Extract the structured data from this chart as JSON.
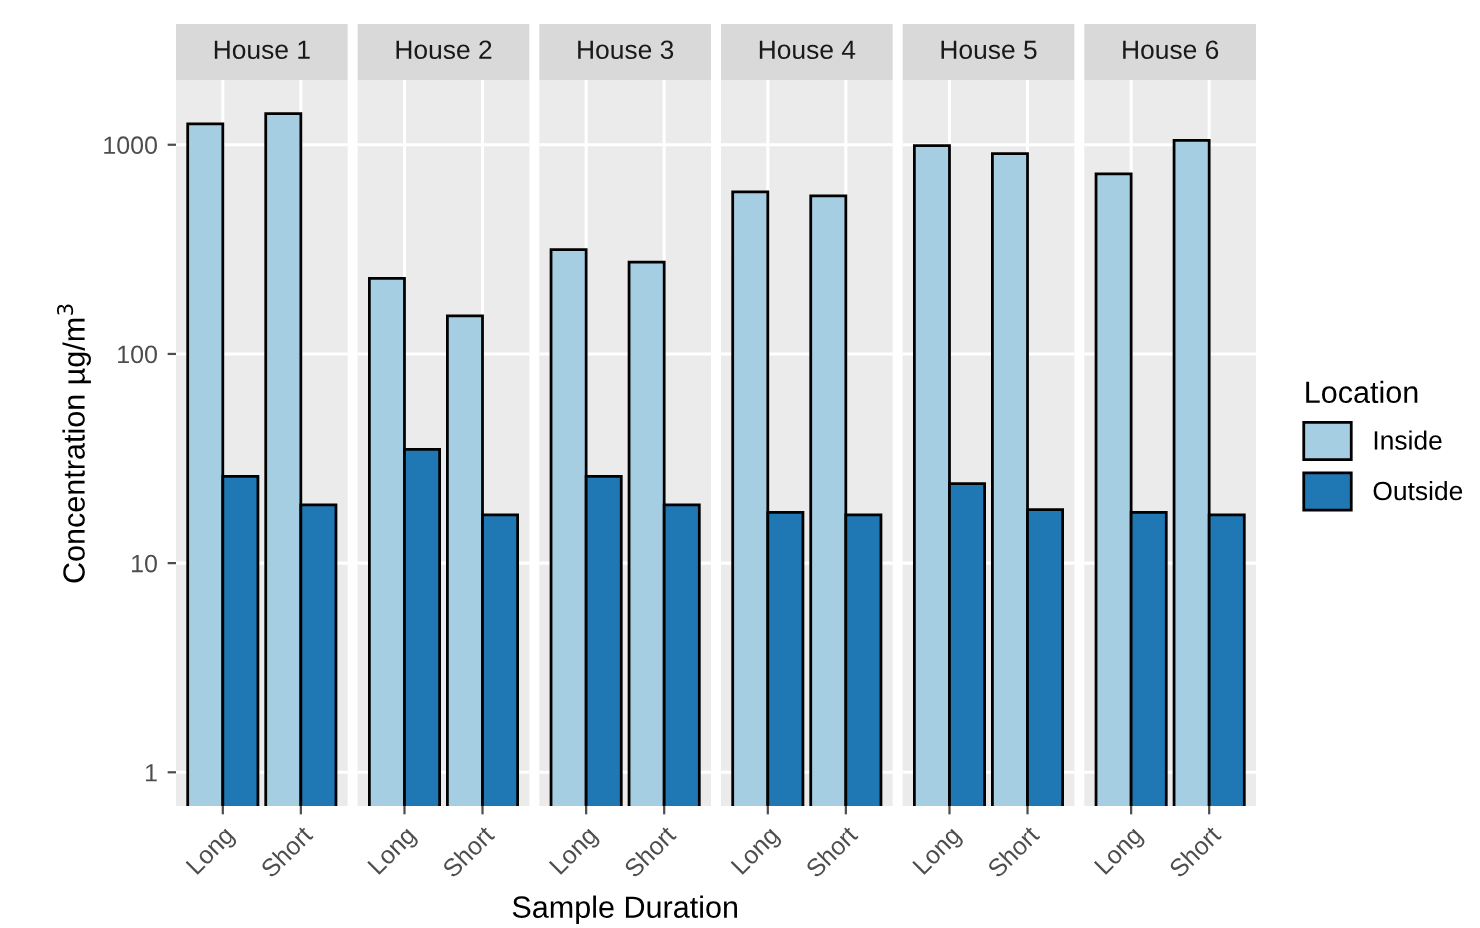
{
  "chart_data": [
    {
      "type": "bar",
      "title": "House 1",
      "ylabel": "Concentration µg/m$^{3}$",
      "legend_title": "Location",
      "legend": "right",
      "categories": [
        "Long",
        "Short"
      ],
      "log": true,
      "ylim": [
        0.69,
        2040
      ],
      "yticks": [
        1,
        10,
        100,
        1000
      ],
      "grid": true,
      "series": [
        {
          "name": "Inside",
          "color": "#a6cee3",
          "values": [
            1260,
            1410
          ]
        },
        {
          "name": "Outside",
          "color": "#1f78b4",
          "values": [
            26,
            19
          ]
        }
      ]
    },
    {
      "type": "bar",
      "title": "House 2",
      "categories": [
        "Long",
        "Short"
      ],
      "log": true,
      "ylim": [
        0.69,
        2040
      ],
      "yticks": [
        1,
        10,
        100,
        1000
      ],
      "grid": true,
      "tick_labels": "x",
      "series": [
        {
          "color": "#a6cee3",
          "values": [
            230,
            152
          ]
        },
        {
          "color": "#1f78b4",
          "values": [
            35,
            17
          ]
        }
      ]
    },
    {
      "type": "bar",
      "title": "House 3",
      "xlabel": "Sample Duration",
      "categories": [
        "Long",
        "Short"
      ],
      "log": true,
      "ylim": [
        0.69,
        2040
      ],
      "yticks": [
        1,
        10,
        100,
        1000
      ],
      "grid": true,
      "tick_labels": "x",
      "series": [
        {
          "color": "#a6cee3",
          "values": [
            315,
            275
          ]
        },
        {
          "color": "#1f78b4",
          "values": [
            26,
            19
          ]
        }
      ]
    },
    {
      "type": "bar",
      "title": "House 4",
      "categories": [
        "Long",
        "Short"
      ],
      "log": true,
      "ylim": [
        0.69,
        2040
      ],
      "yticks": [
        1,
        10,
        100,
        1000
      ],
      "grid": true,
      "tick_labels": "x",
      "series": [
        {
          "color": "#a6cee3",
          "values": [
            596,
            570
          ]
        },
        {
          "color": "#1f78b4",
          "values": [
            17.5,
            17
          ]
        }
      ]
    },
    {
      "type": "bar",
      "title": "House 5",
      "categories": [
        "Long",
        "Short"
      ],
      "log": true,
      "ylim": [
        0.69,
        2040
      ],
      "yticks": [
        1,
        10,
        100,
        1000
      ],
      "grid": true,
      "tick_labels": "x",
      "series": [
        {
          "color": "#a6cee3",
          "values": [
            990,
            906
          ]
        },
        {
          "color": "#1f78b4",
          "values": [
            24,
            18
          ]
        }
      ]
    },
    {
      "type": "bar",
      "title": "House 6",
      "categories": [
        "Long",
        "Short"
      ],
      "log": true,
      "ylim": [
        0.69,
        2040
      ],
      "yticks": [
        1,
        10,
        100,
        1000
      ],
      "grid": true,
      "tick_labels": "x",
      "series": [
        {
          "color": "#a6cee3",
          "values": [
            725,
            1050
          ]
        },
        {
          "color": "#1f78b4",
          "values": [
            17.5,
            17
          ]
        }
      ]
    }
  ]
}
